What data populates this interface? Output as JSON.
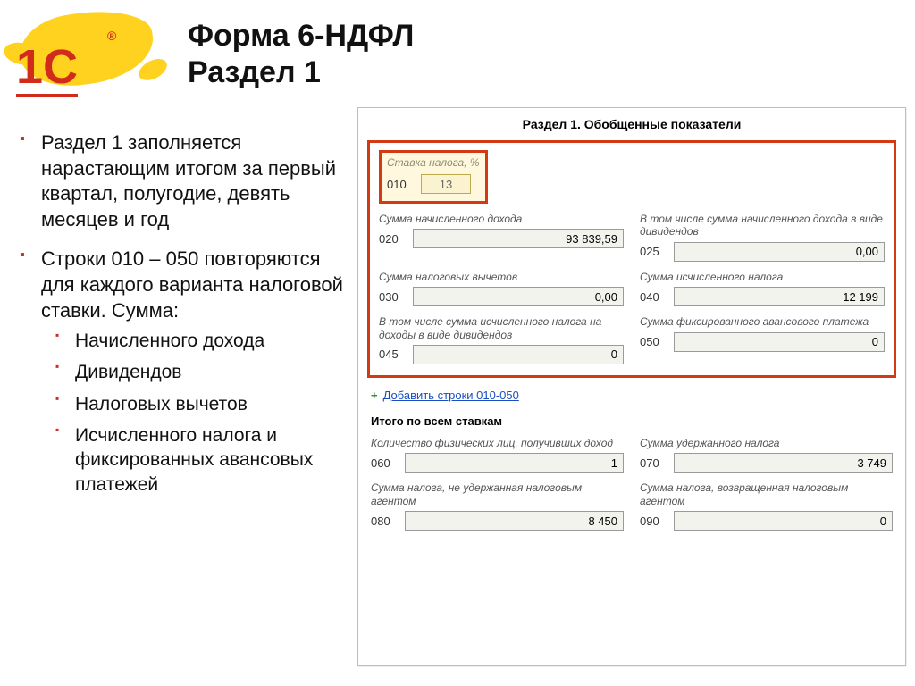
{
  "logo": {
    "text": "1С",
    "reg": "®"
  },
  "title_line1": "Форма 6-НДФЛ",
  "title_line2": "Раздел 1",
  "bullets": {
    "b1": "Раздел 1 заполняется нарастающим итогом за первый квартал, полугодие, девять месяцев и год",
    "b2": "Строки 010 – 050 повторяются для каждого варианта налоговой ставки. Сумма:",
    "sub1": "Начисленного дохода",
    "sub2": "Дивидендов",
    "sub3": "Налоговых вычетов",
    "sub4": "Исчисленного налога и фиксированных авансовых платежей"
  },
  "panel": {
    "title": "Раздел 1. Обобщенные показатели",
    "rate": {
      "label": "Ставка налога, %",
      "code": "010",
      "value": "13"
    },
    "r020": {
      "label": "Сумма начисленного дохода",
      "code": "020",
      "value": "93 839,59"
    },
    "r025": {
      "label": "В том числе сумма начисленного дохода в виде дивидендов",
      "code": "025",
      "value": "0,00"
    },
    "r030": {
      "label": "Сумма налоговых вычетов",
      "code": "030",
      "value": "0,00"
    },
    "r040": {
      "label": "Сумма исчисленного налога",
      "code": "040",
      "value": "12 199"
    },
    "r045": {
      "label": "В том числе сумма исчисленного налога на доходы в виде дивидендов",
      "code": "045",
      "value": "0"
    },
    "r050": {
      "label": "Сумма фиксированного авансового платежа",
      "code": "050",
      "value": "0"
    },
    "add_link": "Добавить строки 010-050",
    "totals_heading": "Итого по всем ставкам",
    "r060": {
      "label": "Количество физических лиц, получивших доход",
      "code": "060",
      "value": "1"
    },
    "r070": {
      "label": "Сумма удержанного налога",
      "code": "070",
      "value": "3 749"
    },
    "r080": {
      "label": "Сумма налога, не удержанная налоговым агентом",
      "code": "080",
      "value": "8 450"
    },
    "r090": {
      "label": "Сумма налога, возвращенная налоговым агентом",
      "code": "090",
      "value": "0"
    }
  },
  "colors": {
    "accent_red": "#d22b1c",
    "highlight_border": "#d23a14",
    "yellow": "#ffd21f"
  }
}
